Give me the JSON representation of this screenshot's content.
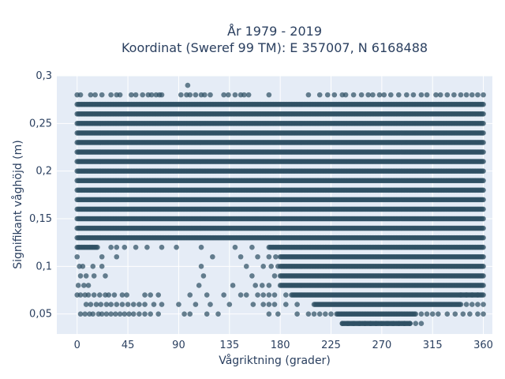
{
  "chart_data": {
    "type": "scatter",
    "title_line1": "År 1979 - 2019",
    "title_line2": "Koordinat (Sweref 99 TM): E 357007, N 6168488",
    "xlabel": "Vågriktning (grader)",
    "ylabel": "Signifikant våghöjd (m)",
    "xlim": [
      -18,
      368
    ],
    "ylim": [
      0.029,
      0.3
    ],
    "x_ticks": [
      0,
      45,
      90,
      135,
      180,
      225,
      270,
      315,
      360
    ],
    "x_tick_labels": [
      "0",
      "45",
      "90",
      "135",
      "180",
      "225",
      "270",
      "315",
      "360"
    ],
    "y_ticks": [
      0.05,
      0.1,
      0.15,
      0.2,
      0.25,
      0.3
    ],
    "y_tick_labels": [
      "0,05",
      "0,1",
      "0,15",
      "0,2",
      "0,25",
      "0,3"
    ],
    "grid": true,
    "marker_color": "#2f5164",
    "plot_bg": "#e5ecf6",
    "dense_bands": [
      {
        "y": 0.26,
        "x_from": 0,
        "x_to": 360
      },
      {
        "y": 0.25,
        "x_from": 0,
        "x_to": 360
      },
      {
        "y": 0.24,
        "x_from": 0,
        "x_to": 360
      },
      {
        "y": 0.23,
        "x_from": 0,
        "x_to": 360
      },
      {
        "y": 0.22,
        "x_from": 0,
        "x_to": 360
      },
      {
        "y": 0.21,
        "x_from": 0,
        "x_to": 360
      },
      {
        "y": 0.2,
        "x_from": 0,
        "x_to": 360
      },
      {
        "y": 0.19,
        "x_from": 0,
        "x_to": 360
      },
      {
        "y": 0.18,
        "x_from": 0,
        "x_to": 360
      },
      {
        "y": 0.17,
        "x_from": 0,
        "x_to": 360
      },
      {
        "y": 0.16,
        "x_from": 0,
        "x_to": 360
      },
      {
        "y": 0.15,
        "x_from": 0,
        "x_to": 360
      },
      {
        "y": 0.14,
        "x_from": 0,
        "x_to": 360
      },
      {
        "y": 0.13,
        "x_from": 0,
        "x_to": 360
      },
      {
        "y": 0.27,
        "x_from": 0,
        "x_to": 360
      },
      {
        "y": 0.12,
        "x_from": 0,
        "x_to": 18
      },
      {
        "y": 0.12,
        "x_from": 170,
        "x_to": 360
      },
      {
        "y": 0.11,
        "x_from": 180,
        "x_to": 360
      },
      {
        "y": 0.1,
        "x_from": 180,
        "x_to": 360
      },
      {
        "y": 0.09,
        "x_from": 180,
        "x_to": 360
      },
      {
        "y": 0.08,
        "x_from": 180,
        "x_to": 360
      },
      {
        "y": 0.07,
        "x_from": 190,
        "x_to": 360
      },
      {
        "y": 0.06,
        "x_from": 210,
        "x_to": 340
      },
      {
        "y": 0.05,
        "x_from": 230,
        "x_to": 300
      },
      {
        "y": 0.04,
        "x_from": 235,
        "x_to": 295
      }
    ],
    "sparse_points": [
      [
        0,
        0.28
      ],
      [
        3,
        0.28
      ],
      [
        12,
        0.28
      ],
      [
        16,
        0.28
      ],
      [
        22,
        0.28
      ],
      [
        30,
        0.28
      ],
      [
        35,
        0.28
      ],
      [
        38,
        0.28
      ],
      [
        48,
        0.28
      ],
      [
        52,
        0.28
      ],
      [
        58,
        0.28
      ],
      [
        63,
        0.28
      ],
      [
        66,
        0.28
      ],
      [
        70,
        0.28
      ],
      [
        73,
        0.28
      ],
      [
        75,
        0.28
      ],
      [
        92,
        0.28
      ],
      [
        97,
        0.28
      ],
      [
        100,
        0.28
      ],
      [
        105,
        0.28
      ],
      [
        110,
        0.28
      ],
      [
        113,
        0.28
      ],
      [
        118,
        0.28
      ],
      [
        130,
        0.28
      ],
      [
        134,
        0.28
      ],
      [
        140,
        0.28
      ],
      [
        145,
        0.28
      ],
      [
        148,
        0.28
      ],
      [
        152,
        0.28
      ],
      [
        170,
        0.28
      ],
      [
        205,
        0.28
      ],
      [
        215,
        0.28
      ],
      [
        222,
        0.28
      ],
      [
        228,
        0.28
      ],
      [
        235,
        0.28
      ],
      [
        238,
        0.28
      ],
      [
        245,
        0.28
      ],
      [
        252,
        0.28
      ],
      [
        258,
        0.28
      ],
      [
        262,
        0.28
      ],
      [
        268,
        0.28
      ],
      [
        272,
        0.28
      ],
      [
        278,
        0.28
      ],
      [
        285,
        0.28
      ],
      [
        292,
        0.28
      ],
      [
        298,
        0.28
      ],
      [
        305,
        0.28
      ],
      [
        310,
        0.28
      ],
      [
        318,
        0.28
      ],
      [
        322,
        0.28
      ],
      [
        328,
        0.28
      ],
      [
        334,
        0.28
      ],
      [
        340,
        0.28
      ],
      [
        345,
        0.28
      ],
      [
        350,
        0.28
      ],
      [
        355,
        0.28
      ],
      [
        360,
        0.28
      ],
      [
        98,
        0.29
      ],
      [
        0,
        0.11
      ],
      [
        2,
        0.1
      ],
      [
        5,
        0.1
      ],
      [
        3,
        0.09
      ],
      [
        8,
        0.09
      ],
      [
        10,
        0.08
      ],
      [
        1,
        0.08
      ],
      [
        6,
        0.08
      ],
      [
        14,
        0.1
      ],
      [
        22,
        0.11
      ],
      [
        30,
        0.12
      ],
      [
        35,
        0.12
      ],
      [
        42,
        0.12
      ],
      [
        52,
        0.12
      ],
      [
        62,
        0.12
      ],
      [
        75,
        0.12
      ],
      [
        88,
        0.12
      ],
      [
        110,
        0.12
      ],
      [
        140,
        0.12
      ],
      [
        155,
        0.12
      ],
      [
        160,
        0.11
      ],
      [
        170,
        0.11
      ],
      [
        176,
        0.11
      ],
      [
        165,
        0.1
      ],
      [
        172,
        0.1
      ],
      [
        178,
        0.1
      ],
      [
        175,
        0.09
      ],
      [
        158,
        0.08
      ],
      [
        170,
        0.08
      ],
      [
        164,
        0.08
      ],
      [
        22,
        0.1
      ],
      [
        25,
        0.09
      ],
      [
        15,
        0.09
      ],
      [
        35,
        0.11
      ],
      [
        110,
        0.1
      ],
      [
        112,
        0.09
      ],
      [
        108,
        0.08
      ],
      [
        120,
        0.11
      ],
      [
        145,
        0.11
      ],
      [
        150,
        0.1
      ],
      [
        138,
        0.08
      ],
      [
        155,
        0.09
      ],
      [
        0,
        0.07
      ],
      [
        3,
        0.07
      ],
      [
        7,
        0.07
      ],
      [
        10,
        0.07
      ],
      [
        15,
        0.07
      ],
      [
        20,
        0.07
      ],
      [
        25,
        0.07
      ],
      [
        28,
        0.07
      ],
      [
        33,
        0.07
      ],
      [
        40,
        0.07
      ],
      [
        44,
        0.07
      ],
      [
        60,
        0.07
      ],
      [
        65,
        0.07
      ],
      [
        72,
        0.07
      ],
      [
        100,
        0.07
      ],
      [
        115,
        0.07
      ],
      [
        130,
        0.07
      ],
      [
        145,
        0.07
      ],
      [
        150,
        0.07
      ],
      [
        160,
        0.07
      ],
      [
        165,
        0.07
      ],
      [
        170,
        0.07
      ],
      [
        175,
        0.07
      ],
      [
        185,
        0.07
      ],
      [
        8,
        0.06
      ],
      [
        12,
        0.06
      ],
      [
        17,
        0.06
      ],
      [
        21,
        0.06
      ],
      [
        26,
        0.06
      ],
      [
        30,
        0.06
      ],
      [
        35,
        0.06
      ],
      [
        40,
        0.06
      ],
      [
        45,
        0.06
      ],
      [
        50,
        0.06
      ],
      [
        55,
        0.06
      ],
      [
        60,
        0.06
      ],
      [
        68,
        0.06
      ],
      [
        75,
        0.06
      ],
      [
        90,
        0.06
      ],
      [
        105,
        0.06
      ],
      [
        118,
        0.06
      ],
      [
        135,
        0.06
      ],
      [
        156,
        0.06
      ],
      [
        165,
        0.06
      ],
      [
        170,
        0.06
      ],
      [
        175,
        0.06
      ],
      [
        185,
        0.06
      ],
      [
        195,
        0.06
      ],
      [
        3,
        0.05
      ],
      [
        7,
        0.05
      ],
      [
        11,
        0.05
      ],
      [
        14,
        0.05
      ],
      [
        19,
        0.05
      ],
      [
        22,
        0.05
      ],
      [
        26,
        0.05
      ],
      [
        30,
        0.05
      ],
      [
        34,
        0.05
      ],
      [
        38,
        0.05
      ],
      [
        42,
        0.05
      ],
      [
        46,
        0.05
      ],
      [
        50,
        0.05
      ],
      [
        55,
        0.05
      ],
      [
        60,
        0.05
      ],
      [
        65,
        0.05
      ],
      [
        72,
        0.05
      ],
      [
        95,
        0.05
      ],
      [
        100,
        0.05
      ],
      [
        115,
        0.05
      ],
      [
        125,
        0.05
      ],
      [
        170,
        0.05
      ],
      [
        178,
        0.05
      ],
      [
        195,
        0.05
      ],
      [
        205,
        0.05
      ],
      [
        210,
        0.05
      ],
      [
        215,
        0.05
      ],
      [
        220,
        0.05
      ],
      [
        225,
        0.05
      ],
      [
        305,
        0.05
      ],
      [
        310,
        0.05
      ],
      [
        315,
        0.05
      ],
      [
        320,
        0.05
      ],
      [
        328,
        0.05
      ],
      [
        335,
        0.05
      ],
      [
        342,
        0.05
      ],
      [
        348,
        0.05
      ],
      [
        355,
        0.05
      ],
      [
        360,
        0.05
      ],
      [
        235,
        0.04
      ],
      [
        240,
        0.04
      ],
      [
        245,
        0.04
      ],
      [
        250,
        0.04
      ],
      [
        255,
        0.04
      ],
      [
        260,
        0.04
      ],
      [
        265,
        0.04
      ],
      [
        270,
        0.04
      ],
      [
        275,
        0.04
      ],
      [
        280,
        0.04
      ],
      [
        285,
        0.04
      ],
      [
        290,
        0.04
      ],
      [
        295,
        0.04
      ],
      [
        300,
        0.04
      ],
      [
        305,
        0.04
      ],
      [
        345,
        0.06
      ],
      [
        350,
        0.06
      ],
      [
        355,
        0.06
      ],
      [
        360,
        0.06
      ],
      [
        340,
        0.07
      ],
      [
        345,
        0.07
      ],
      [
        350,
        0.07
      ],
      [
        355,
        0.07
      ]
    ]
  }
}
